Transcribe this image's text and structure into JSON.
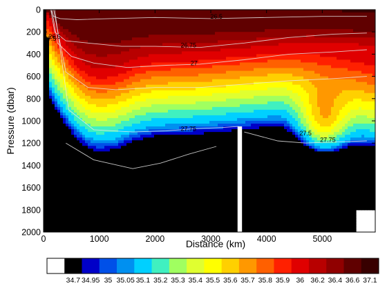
{
  "chart_data": {
    "type": "heatmap",
    "xlabel": "Distance (km)",
    "ylabel": "Pressure (dbar)",
    "x_ticks": [
      0,
      1000,
      2000,
      3000,
      4000,
      5000
    ],
    "y_ticks": [
      0,
      200,
      400,
      600,
      800,
      1000,
      1200,
      1400,
      1600,
      1800,
      2000
    ],
    "xlim": [
      0,
      5950
    ],
    "ylim": [
      2000,
      0
    ],
    "y_inverted": true,
    "grid": false,
    "variable": "salinity",
    "colorbar": {
      "placement": "bottom",
      "levels": [
        "34.7",
        "34.95",
        "35",
        "35.05",
        "35.1",
        "35.2",
        "35.3",
        "35.4",
        "35.5",
        "35.6",
        "35.7",
        "35.8",
        "35.9",
        "36",
        "36.2",
        "36.4",
        "36.6",
        "37.1"
      ],
      "colors": [
        "#000000",
        "#0000c8",
        "#0050e8",
        "#0090f0",
        "#00d0ff",
        "#40f0c0",
        "#a0ff60",
        "#e0ff30",
        "#ffff00",
        "#ffd000",
        "#ff9800",
        "#ff6000",
        "#ff2000",
        "#e00000",
        "#b80000",
        "#900000",
        "#600000",
        "#380000"
      ]
    },
    "salinity_field": {
      "x_km": [
        0,
        100,
        200,
        300,
        400,
        600,
        800,
        1000,
        1200,
        1500,
        1800,
        2100,
        2400,
        2700,
        3000,
        3300,
        3600,
        3900,
        4200,
        4500,
        4800,
        5100,
        5400,
        5700
      ],
      "p_dbar": [
        0,
        100,
        200,
        300,
        400,
        500,
        600,
        700,
        800,
        900,
        1000,
        1100,
        1200,
        1300,
        1400,
        1500,
        1600,
        1700,
        1800,
        1900,
        2000
      ]
    },
    "gaps_km": [
      [
        3480,
        3560
      ]
    ],
    "isopycnal_labels": [
      {
        "text": "26.5",
        "x": 3100,
        "p": 80
      },
      {
        "text": "26.75",
        "x": 2600,
        "p": 340
      },
      {
        "text": "27",
        "x": 2700,
        "p": 500
      },
      {
        "text": "27.5",
        "x": 4700,
        "p": 1130
      },
      {
        "text": "27.75",
        "x": 2600,
        "p": 1090
      },
      {
        "text": "27.75",
        "x": 5100,
        "p": 1190
      },
      {
        "text": "27.5",
        "x": 120,
        "p": 280
      },
      {
        "text": "26.5",
        "x": 200,
        "p": 260
      }
    ]
  }
}
